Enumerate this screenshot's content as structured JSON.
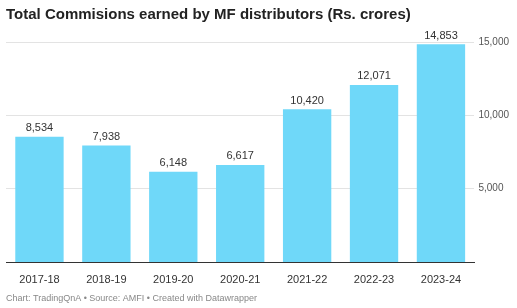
{
  "chart_data": {
    "type": "bar",
    "title": "Total Commisions earned by MF distributors (Rs. crores)",
    "caption": "Chart: TradingQnA • Source: AMFI • Created with Datawrapper",
    "categories": [
      "2017-18",
      "2018-19",
      "2019-20",
      "2020-21",
      "2021-22",
      "2022-23",
      "2023-24"
    ],
    "values": [
      8534,
      7938,
      6148,
      6617,
      10420,
      12071,
      14853
    ],
    "value_labels": [
      "8,534",
      "7,938",
      "6,148",
      "6,617",
      "10,420",
      "12,071",
      "14,853"
    ],
    "data_labels": true,
    "color": "#6fd8f9",
    "ylim": [
      0,
      15000
    ],
    "yticks": [
      {
        "value": 5000,
        "label": "5,000"
      },
      {
        "value": 10000,
        "label": "10,000"
      },
      {
        "value": 15000,
        "label": "15,000"
      }
    ],
    "grid": true
  }
}
